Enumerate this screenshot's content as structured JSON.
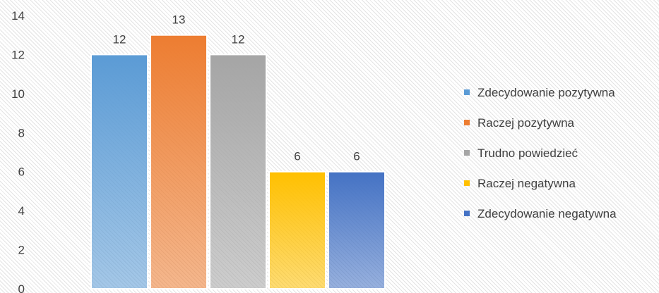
{
  "chart_data": {
    "type": "bar",
    "title": "",
    "xlabel": "",
    "ylabel": "",
    "ylim": [
      0,
      14
    ],
    "yticks": [
      0,
      2,
      4,
      6,
      8,
      10,
      12,
      14
    ],
    "grid": false,
    "legend_position": "right",
    "series": [
      {
        "name": "Zdecydowanie pozytywna",
        "values": [
          12
        ],
        "color": "#5b9bd5"
      },
      {
        "name": "Raczej pozytywna",
        "values": [
          13
        ],
        "color": "#ed7d31"
      },
      {
        "name": "Trudno powiedzieć",
        "values": [
          12
        ],
        "color": "#a5a5a5"
      },
      {
        "name": "Raczej negatywna",
        "values": [
          6
        ],
        "color": "#ffc000"
      },
      {
        "name": "Zdecydowanie negatywna",
        "values": [
          6
        ],
        "color": "#4472c4"
      }
    ]
  }
}
